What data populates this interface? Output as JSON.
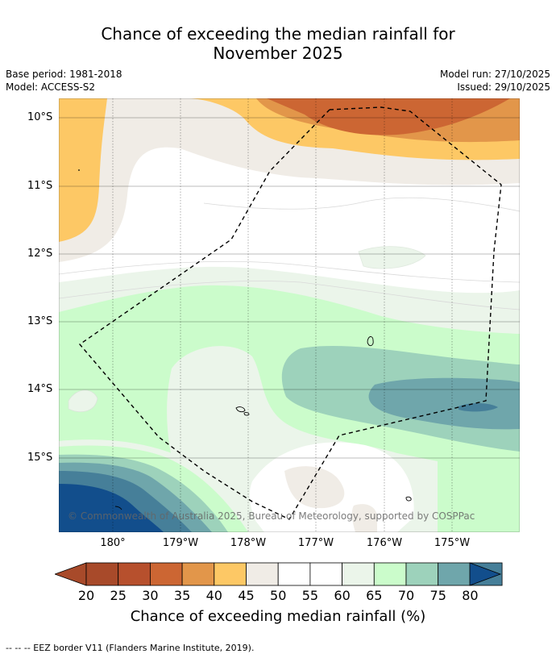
{
  "title_line1": "Chance of exceeding the median rainfall for",
  "title_line2": "November 2025",
  "meta": {
    "base_period": "Base period: 1981-2018",
    "model": "Model: ACCESS-S2",
    "model_run": "Model run: 27/10/2025",
    "issued": "Issued: 29/10/2025"
  },
  "axes": {
    "lat_labels": [
      "10°S",
      "11°S",
      "12°S",
      "13°S",
      "14°S",
      "15°S"
    ],
    "lon_labels": [
      "180°",
      "179°W",
      "178°W",
      "177°W",
      "176°W",
      "175°W"
    ]
  },
  "copyright": "© Commonwealth of Australia 2025, Bureau of Meteorology, supported by COSPPac",
  "colorbar": {
    "labels": [
      "20",
      "25",
      "30",
      "35",
      "40",
      "45",
      "50",
      "55",
      "60",
      "65",
      "70",
      "75",
      "80"
    ],
    "colors": [
      "#a84a2a",
      "#b7502d",
      "#cc6633",
      "#e2964a",
      "#fdc865",
      "#f0ece6",
      "#ffffff",
      "#ffffff",
      "#ebf5ea",
      "#cbfccb",
      "#9dd2bb",
      "#6fa6ab",
      "#467f99"
    ],
    "low_color": "#a84a2a",
    "high_color": "#124e8c",
    "title": "Chance of exceeding median rainfall (%)"
  },
  "footnote": "--  --  -- EEZ border V11 (Flanders Marine Institute, 2019)."
}
